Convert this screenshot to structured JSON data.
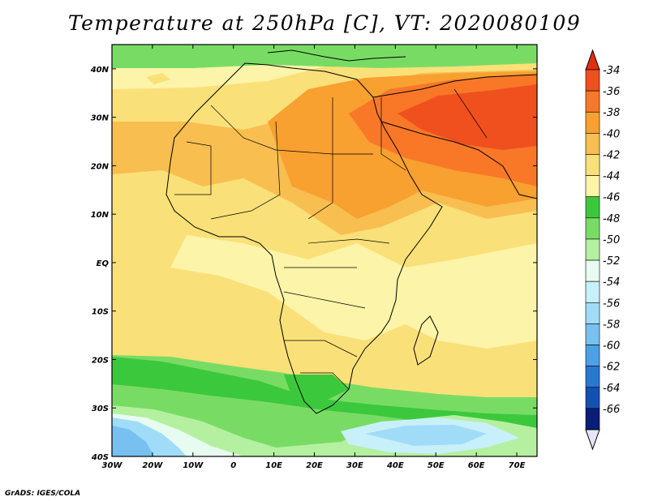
{
  "title": "Temperature at 250hPa [C], VT: 2020080109",
  "credit": "GrADS: IGES/COLA",
  "map": {
    "lon_range": [
      -30,
      75
    ],
    "lat_range": [
      -40,
      45
    ],
    "lon_ticks": [
      {
        "value": -30,
        "label": "30W"
      },
      {
        "value": -20,
        "label": "20W"
      },
      {
        "value": -10,
        "label": "10W"
      },
      {
        "value": 0,
        "label": "0"
      },
      {
        "value": 10,
        "label": "10E"
      },
      {
        "value": 20,
        "label": "20E"
      },
      {
        "value": 30,
        "label": "30E"
      },
      {
        "value": 40,
        "label": "40E"
      },
      {
        "value": 50,
        "label": "50E"
      },
      {
        "value": 60,
        "label": "60E"
      },
      {
        "value": 70,
        "label": "70E"
      }
    ],
    "lat_ticks": [
      {
        "value": 40,
        "label": "40N"
      },
      {
        "value": 30,
        "label": "30N"
      },
      {
        "value": 20,
        "label": "20N"
      },
      {
        "value": 10,
        "label": "10N"
      },
      {
        "value": 0,
        "label": "EQ"
      },
      {
        "value": -10,
        "label": "10S"
      },
      {
        "value": -20,
        "label": "20S"
      },
      {
        "value": -30,
        "label": "30S"
      },
      {
        "value": -40,
        "label": "40S"
      }
    ]
  },
  "colorbar": {
    "levels": [
      {
        "label": "-34",
        "color": "#f0501e"
      },
      {
        "label": "-36",
        "color": "#f87828"
      },
      {
        "label": "-38",
        "color": "#f8a030"
      },
      {
        "label": "-40",
        "color": "#f8be50"
      },
      {
        "label": "-42",
        "color": "#fae078"
      },
      {
        "label": "-44",
        "color": "#fcf4a8"
      },
      {
        "label": "-46",
        "color": "#3cc83c"
      },
      {
        "label": "-48",
        "color": "#78dc64"
      },
      {
        "label": "-50",
        "color": "#b4f0a0"
      },
      {
        "label": "-52",
        "color": "#e6fcf0"
      },
      {
        "label": "-54",
        "color": "#c8f0fa"
      },
      {
        "label": "-56",
        "color": "#a0dcf8"
      },
      {
        "label": "-58",
        "color": "#78c0f0"
      },
      {
        "label": "-60",
        "color": "#4ca0e6"
      },
      {
        "label": "-62",
        "color": "#2878d2"
      },
      {
        "label": "-64",
        "color": "#1450b4"
      },
      {
        "label": "-66",
        "color": "#0a1e78"
      }
    ],
    "top_arrow_color": "#e03010",
    "bottom_arrow_color": "#e6e6f8"
  }
}
